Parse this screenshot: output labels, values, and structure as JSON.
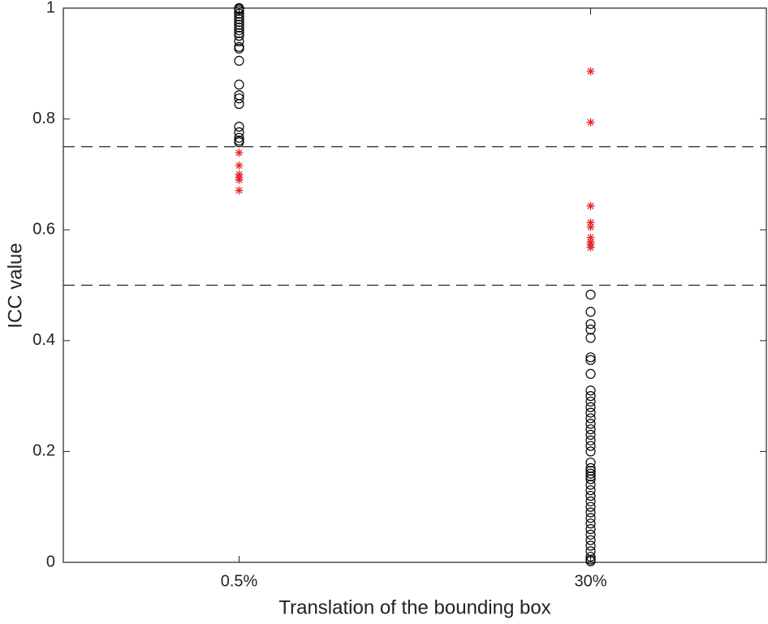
{
  "chart_data": {
    "type": "scatter",
    "x_label": "Translation of the bounding box",
    "y_label": "ICC value",
    "xlim": [
      0.5,
      2.5
    ],
    "xticks": [
      {
        "value": 1,
        "label": "0.5%"
      },
      {
        "value": 2,
        "label": "30%"
      }
    ],
    "ylim": [
      0,
      1
    ],
    "yticks": [
      0,
      0.2,
      0.4,
      0.6,
      0.8,
      1
    ],
    "reference_lines": [
      0.75,
      0.5
    ],
    "series": [
      {
        "marker": "circle",
        "color": "#000000",
        "x": [
          1,
          1,
          1,
          1,
          1,
          1,
          1,
          1,
          1,
          1,
          1,
          1,
          1,
          1,
          1,
          1,
          1,
          1,
          1,
          1,
          1,
          1,
          1,
          1,
          1,
          1,
          1
        ],
        "values": [
          1,
          0.998,
          0.995,
          0.99,
          0.985,
          0.98,
          0.975,
          0.97,
          0.965,
          0.96,
          0.955,
          0.95,
          0.94,
          0.93,
          0.927,
          0.905,
          0.862,
          0.843,
          0.837,
          0.827,
          0.786,
          0.776,
          0.766,
          0.761,
          0.758,
          0.99,
          0.97
        ]
      },
      {
        "marker": "star",
        "color": "#e8262a",
        "x": [
          1,
          1,
          1,
          1,
          1,
          1
        ],
        "values": [
          0.739,
          0.716,
          0.7,
          0.694,
          0.69,
          0.671
        ]
      },
      {
        "marker": "star",
        "color": "#e8262a",
        "x": [
          2,
          2,
          2,
          2,
          2,
          2,
          2,
          2,
          2
        ],
        "values": [
          0.886,
          0.794,
          0.643,
          0.613,
          0.605,
          0.586,
          0.578,
          0.574,
          0.568
        ]
      },
      {
        "marker": "circle",
        "color": "#000000",
        "x": [
          2,
          2,
          2,
          2,
          2,
          2,
          2,
          2,
          2,
          2,
          2,
          2,
          2,
          2,
          2,
          2,
          2,
          2,
          2,
          2,
          2,
          2,
          2,
          2,
          2,
          2,
          2,
          2,
          2,
          2,
          2,
          2,
          2,
          2,
          2,
          2,
          2,
          2,
          2,
          2,
          2,
          2
        ],
        "values": [
          0.483,
          0.452,
          0.43,
          0.42,
          0.405,
          0.37,
          0.365,
          0.34,
          0.31,
          0.3,
          0.29,
          0.28,
          0.27,
          0.26,
          0.25,
          0.24,
          0.23,
          0.22,
          0.21,
          0.2,
          0.18,
          0.17,
          0.165,
          0.16,
          0.155,
          0.15,
          0.14,
          0.13,
          0.12,
          0.11,
          0.1,
          0.09,
          0.08,
          0.07,
          0.06,
          0.05,
          0.04,
          0.03,
          0.02,
          0.01,
          0.005,
          0.002
        ]
      }
    ]
  }
}
